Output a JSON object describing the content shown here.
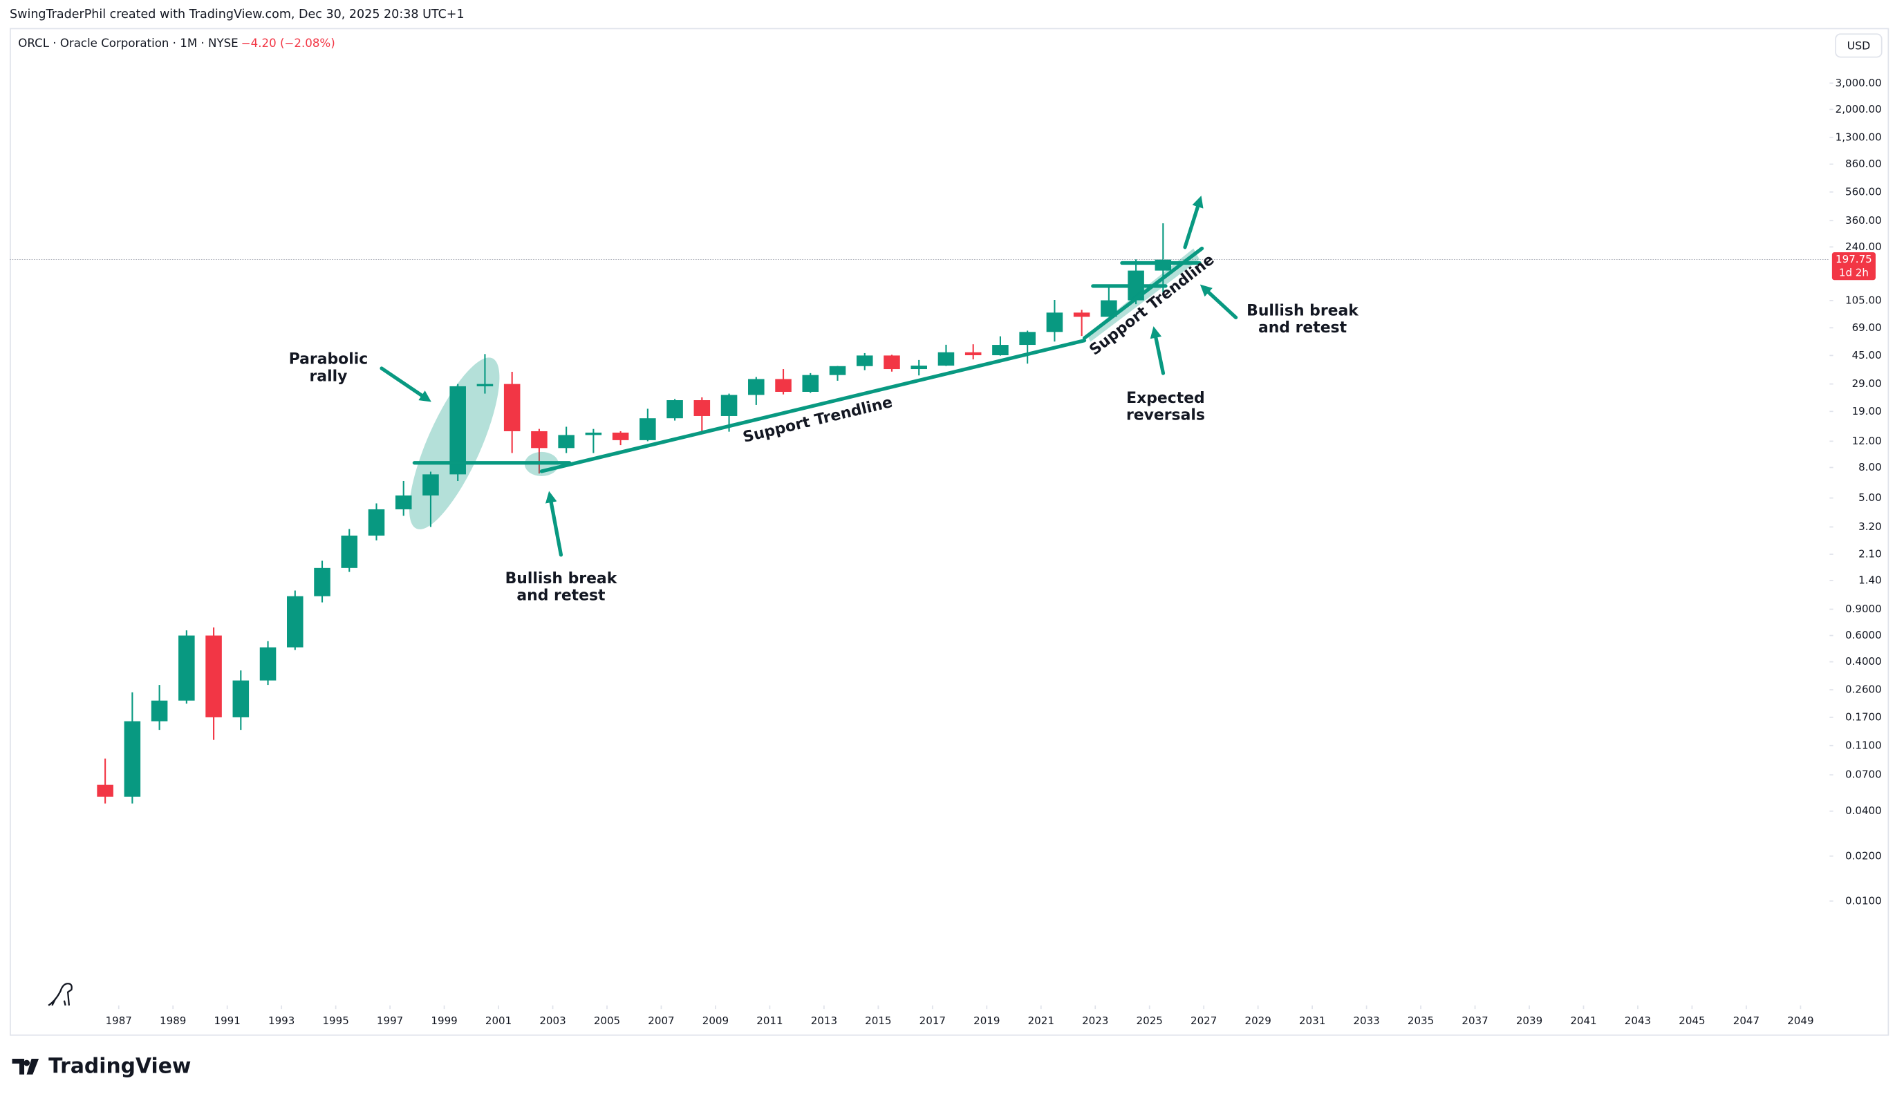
{
  "header": "SwingTraderPhil created with TradingView.com, Dec 30, 2025 20:38 UTC+1",
  "symbol": "ORCL · Oracle Corporation · 1M · NYSE",
  "change": "−4.20 (−2.08%)",
  "currency": "USD",
  "countdown": "1d 2h",
  "brand": "TradingView",
  "chart_data": {
    "type": "candlestick",
    "log_scale": true,
    "up_color": "#089981",
    "down_color": "#f23645",
    "last_price": 197.75,
    "x": [
      1986,
      1987,
      1988,
      1989,
      1990,
      1991,
      1992,
      1993,
      1994,
      1995,
      1996,
      1997,
      1998,
      1999,
      2000,
      2001,
      2002,
      2003,
      2004,
      2005,
      2006,
      2007,
      2008,
      2009,
      2010,
      2011,
      2012,
      2013,
      2014,
      2015,
      2016,
      2017,
      2018,
      2019,
      2020,
      2021,
      2022,
      2023,
      2024,
      2025
    ],
    "open": [
      0.06,
      0.05,
      0.16,
      0.22,
      0.6,
      0.17,
      0.3,
      0.5,
      1.1,
      1.7,
      2.8,
      4.2,
      5.2,
      7.2,
      28,
      29,
      14,
      10.8,
      13.2,
      13.7,
      12.2,
      17.1,
      22.6,
      17.7,
      24.5,
      31.3,
      25.7,
      33.3,
      38.2,
      45,
      36.5,
      38.5,
      47.3,
      45.2,
      53,
      64.7,
      87.2,
      81.7,
      105.4,
      166.6
    ],
    "high": [
      0.09,
      0.25,
      0.28,
      0.65,
      0.68,
      0.35,
      0.55,
      1.2,
      1.9,
      3.1,
      4.6,
      6.5,
      7.5,
      29,
      46,
      35,
      14.5,
      15,
      14.5,
      14,
      19.8,
      23,
      23.6,
      25,
      32.3,
      36.5,
      34.3,
      38.3,
      46.7,
      45.5,
      42,
      53.1,
      53.5,
      60.5,
      66,
      106,
      91,
      132.8,
      198.3,
      345.7
    ],
    "low": [
      0.045,
      0.045,
      0.14,
      0.21,
      0.12,
      0.14,
      0.28,
      0.48,
      1.0,
      1.6,
      2.6,
      3.8,
      3.2,
      6.5,
      25,
      10,
      7.3,
      10,
      10,
      11.3,
      12,
      16.5,
      13.8,
      13.9,
      21,
      24.7,
      25.3,
      30.5,
      35.9,
      35.1,
      33.1,
      38.3,
      42.4,
      44.9,
      39.7,
      55.8,
      60.8,
      82,
      99.3,
      118.9
    ],
    "close": [
      0.05,
      0.16,
      0.22,
      0.6,
      0.17,
      0.3,
      0.5,
      1.1,
      1.7,
      2.8,
      4.2,
      5.2,
      7.2,
      28,
      29,
      14,
      10.8,
      13.2,
      13.7,
      12.2,
      17.1,
      22.6,
      17.7,
      24.5,
      31.3,
      25.7,
      33.3,
      38.2,
      45,
      36.5,
      38.5,
      47.3,
      45.2,
      53,
      64.7,
      87.2,
      81.7,
      105.4,
      166.6,
      197.75
    ],
    "xlim": [
      1982.98,
      2050.07
    ],
    "xticks": [
      1987,
      1989,
      1991,
      1993,
      1995,
      1997,
      1999,
      2001,
      2003,
      2005,
      2007,
      2009,
      2011,
      2013,
      2015,
      2017,
      2019,
      2021,
      2023,
      2025,
      2027,
      2029,
      2031,
      2033,
      2035,
      2037,
      2039,
      2041,
      2043,
      2045,
      2047,
      2049
    ],
    "ylim": [
      0.002,
      4400
    ],
    "yticks": [
      {
        "value": 3000,
        "label": "3,000.00"
      },
      {
        "value": 2000,
        "label": "2,000.00"
      },
      {
        "value": 1300,
        "label": "1,300.00"
      },
      {
        "value": 860,
        "label": "860.00"
      },
      {
        "value": 560,
        "label": "560.00"
      },
      {
        "value": 360,
        "label": "360.00"
      },
      {
        "value": 240,
        "label": "240.00"
      },
      {
        "value": 105,
        "label": "105.00"
      },
      {
        "value": 69,
        "label": "69.00"
      },
      {
        "value": 45,
        "label": "45.00"
      },
      {
        "value": 29,
        "label": "29.00"
      },
      {
        "value": 19,
        "label": "19.00"
      },
      {
        "value": 12,
        "label": "12.00"
      },
      {
        "value": 8,
        "label": "8.00"
      },
      {
        "value": 5,
        "label": "5.00"
      },
      {
        "value": 3.2,
        "label": "3.20"
      },
      {
        "value": 2.1,
        "label": "2.10"
      },
      {
        "value": 1.4,
        "label": "1.40"
      },
      {
        "value": 0.9,
        "label": "0.9000"
      },
      {
        "value": 0.6,
        "label": "0.6000"
      },
      {
        "value": 0.4,
        "label": "0.4000"
      },
      {
        "value": 0.26,
        "label": "0.2600"
      },
      {
        "value": 0.17,
        "label": "0.1700"
      },
      {
        "value": 0.11,
        "label": "0.1100"
      },
      {
        "value": 0.07,
        "label": "0.0700"
      },
      {
        "value": 0.04,
        "label": "0.0400"
      },
      {
        "value": 0.02,
        "label": "0.0200"
      },
      {
        "value": 0.01,
        "label": "0.0100"
      }
    ],
    "annotations": [
      [
        "Parabolic",
        "rally"
      ],
      [
        "Bullish break",
        "and retest"
      ],
      [
        "Expected",
        "reversals"
      ],
      [
        "Bullish break",
        "and retest"
      ]
    ],
    "trendline_labels": [
      "Support Trendline",
      "Support Trendline"
    ]
  }
}
